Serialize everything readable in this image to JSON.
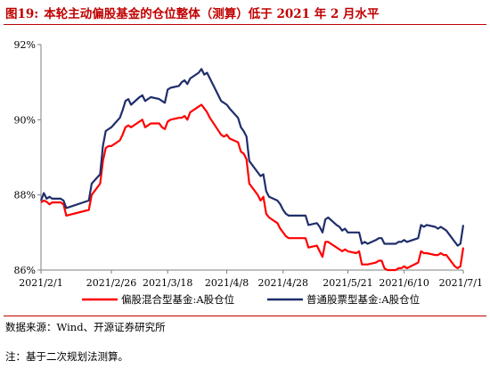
{
  "title": {
    "label": "图19:",
    "text": "本轮主动偏股基金的仓位整体（测算）低于 2021 年 2 月水平"
  },
  "source": "数据来源：Wind、开源证券研究所",
  "note": "注：基于二次规划法测算。",
  "colors": {
    "title": "#c00000",
    "series_red": "#ff0000",
    "series_navy": "#1f2e6b",
    "axis": "#7f7f7f"
  },
  "chart_data": {
    "type": "line",
    "title": "",
    "xlabel": "",
    "ylabel": "",
    "ylim": [
      86,
      92
    ],
    "xlim": [
      "2021-02-01",
      "2021-07-01"
    ],
    "yticks": [
      86,
      88,
      90,
      92
    ],
    "ytick_labels": [
      "86%",
      "88%",
      "90%",
      "92%"
    ],
    "xticks": [
      "2021-02-01",
      "2021-02-26",
      "2021-03-18",
      "2021-04-08",
      "2021-04-28",
      "2021-05-21",
      "2021-06-10",
      "2021-07-01"
    ],
    "xtick_labels": [
      "2021/2/1",
      "2021/2/26",
      "2021/3/18",
      "2021/4/8",
      "2021/4/28",
      "2021/5/21",
      "2021/6/10",
      "2021/7/1"
    ],
    "grid": false,
    "legend": "bottom",
    "series": [
      {
        "name": "偏股混合型基金:A股仓位",
        "color": "#ff0000",
        "points": [
          [
            "2021-02-01",
            87.8
          ],
          [
            "2021-02-02",
            87.85
          ],
          [
            "2021-02-03",
            87.82
          ],
          [
            "2021-02-04",
            87.75
          ],
          [
            "2021-02-05",
            87.8
          ],
          [
            "2021-02-08",
            87.8
          ],
          [
            "2021-02-09",
            87.75
          ],
          [
            "2021-02-10",
            87.45
          ],
          [
            "2021-02-18",
            87.6
          ],
          [
            "2021-02-19",
            88.0
          ],
          [
            "2021-02-22",
            88.3
          ],
          [
            "2021-02-23",
            88.9
          ],
          [
            "2021-02-24",
            89.25
          ],
          [
            "2021-02-25",
            89.3
          ],
          [
            "2021-02-26",
            89.3
          ],
          [
            "2021-03-01",
            89.45
          ],
          [
            "2021-03-02",
            89.6
          ],
          [
            "2021-03-03",
            89.8
          ],
          [
            "2021-03-04",
            89.85
          ],
          [
            "2021-03-05",
            89.8
          ],
          [
            "2021-03-08",
            89.95
          ],
          [
            "2021-03-09",
            90.0
          ],
          [
            "2021-03-10",
            89.8
          ],
          [
            "2021-03-11",
            89.85
          ],
          [
            "2021-03-12",
            89.9
          ],
          [
            "2021-03-15",
            89.9
          ],
          [
            "2021-03-16",
            89.8
          ],
          [
            "2021-03-17",
            89.75
          ],
          [
            "2021-03-18",
            89.95
          ],
          [
            "2021-03-19",
            90.0
          ],
          [
            "2021-03-22",
            90.05
          ],
          [
            "2021-03-23",
            90.05
          ],
          [
            "2021-03-24",
            90.1
          ],
          [
            "2021-03-25",
            90.0
          ],
          [
            "2021-03-26",
            90.2
          ],
          [
            "2021-03-29",
            90.35
          ],
          [
            "2021-03-30",
            90.4
          ],
          [
            "2021-03-31",
            90.3
          ],
          [
            "2021-04-01",
            90.2
          ],
          [
            "2021-04-02",
            90.05
          ],
          [
            "2021-04-06",
            89.6
          ],
          [
            "2021-04-07",
            89.55
          ],
          [
            "2021-04-08",
            89.6
          ],
          [
            "2021-04-09",
            89.5
          ],
          [
            "2021-04-12",
            89.4
          ],
          [
            "2021-04-13",
            89.15
          ],
          [
            "2021-04-14",
            89.1
          ],
          [
            "2021-04-15",
            88.95
          ],
          [
            "2021-04-16",
            88.3
          ],
          [
            "2021-04-19",
            88.0
          ],
          [
            "2021-04-20",
            87.85
          ],
          [
            "2021-04-21",
            87.95
          ],
          [
            "2021-04-22",
            87.5
          ],
          [
            "2021-04-23",
            87.4
          ],
          [
            "2021-04-26",
            87.25
          ],
          [
            "2021-04-27",
            87.1
          ],
          [
            "2021-04-28",
            87.0
          ],
          [
            "2021-04-29",
            86.9
          ],
          [
            "2021-04-30",
            86.85
          ],
          [
            "2021-05-06",
            86.85
          ],
          [
            "2021-05-07",
            86.6
          ],
          [
            "2021-05-10",
            86.65
          ],
          [
            "2021-05-11",
            86.5
          ],
          [
            "2021-05-12",
            86.35
          ],
          [
            "2021-05-13",
            86.75
          ],
          [
            "2021-05-14",
            86.75
          ],
          [
            "2021-05-17",
            86.6
          ],
          [
            "2021-05-18",
            86.55
          ],
          [
            "2021-05-19",
            86.5
          ],
          [
            "2021-05-20",
            86.55
          ],
          [
            "2021-05-21",
            86.5
          ],
          [
            "2021-05-24",
            86.45
          ],
          [
            "2021-05-25",
            86.5
          ],
          [
            "2021-05-26",
            86.15
          ],
          [
            "2021-05-27",
            86.15
          ],
          [
            "2021-05-28",
            86.15
          ],
          [
            "2021-05-31",
            86.2
          ],
          [
            "2021-06-01",
            86.25
          ],
          [
            "2021-06-02",
            86.25
          ],
          [
            "2021-06-03",
            86.05
          ],
          [
            "2021-06-04",
            86.0
          ],
          [
            "2021-06-07",
            86.0
          ],
          [
            "2021-06-08",
            86.05
          ],
          [
            "2021-06-09",
            86.05
          ],
          [
            "2021-06-10",
            86.1
          ],
          [
            "2021-06-11",
            86.05
          ],
          [
            "2021-06-15",
            86.2
          ],
          [
            "2021-06-16",
            86.5
          ],
          [
            "2021-06-17",
            86.45
          ],
          [
            "2021-06-18",
            86.45
          ],
          [
            "2021-06-21",
            86.4
          ],
          [
            "2021-06-22",
            86.4
          ],
          [
            "2021-06-23",
            86.45
          ],
          [
            "2021-06-24",
            86.4
          ],
          [
            "2021-06-25",
            86.4
          ],
          [
            "2021-06-28",
            86.1
          ],
          [
            "2021-06-29",
            86.05
          ],
          [
            "2021-06-30",
            86.1
          ],
          [
            "2021-07-01",
            86.6
          ]
        ]
      },
      {
        "name": "普通股票型基金:A股仓位",
        "color": "#1f2e6b",
        "points": [
          [
            "2021-02-01",
            87.85
          ],
          [
            "2021-02-02",
            88.05
          ],
          [
            "2021-02-03",
            87.9
          ],
          [
            "2021-02-04",
            87.95
          ],
          [
            "2021-02-05",
            87.9
          ],
          [
            "2021-02-08",
            87.9
          ],
          [
            "2021-02-09",
            87.85
          ],
          [
            "2021-02-10",
            87.65
          ],
          [
            "2021-02-18",
            87.85
          ],
          [
            "2021-02-19",
            88.3
          ],
          [
            "2021-02-22",
            88.55
          ],
          [
            "2021-02-23",
            89.3
          ],
          [
            "2021-02-24",
            89.7
          ],
          [
            "2021-02-25",
            89.75
          ],
          [
            "2021-02-26",
            89.8
          ],
          [
            "2021-03-01",
            90.05
          ],
          [
            "2021-03-02",
            90.25
          ],
          [
            "2021-03-03",
            90.5
          ],
          [
            "2021-03-04",
            90.55
          ],
          [
            "2021-03-05",
            90.4
          ],
          [
            "2021-03-08",
            90.6
          ],
          [
            "2021-03-09",
            90.65
          ],
          [
            "2021-03-10",
            90.5
          ],
          [
            "2021-03-11",
            90.55
          ],
          [
            "2021-03-12",
            90.6
          ],
          [
            "2021-03-15",
            90.55
          ],
          [
            "2021-03-16",
            90.5
          ],
          [
            "2021-03-17",
            90.45
          ],
          [
            "2021-03-18",
            90.8
          ],
          [
            "2021-03-19",
            90.85
          ],
          [
            "2021-03-22",
            90.9
          ],
          [
            "2021-03-23",
            91.0
          ],
          [
            "2021-03-24",
            91.05
          ],
          [
            "2021-03-25",
            90.95
          ],
          [
            "2021-03-26",
            91.1
          ],
          [
            "2021-03-29",
            91.25
          ],
          [
            "2021-03-30",
            91.35
          ],
          [
            "2021-03-31",
            91.2
          ],
          [
            "2021-04-01",
            91.25
          ],
          [
            "2021-04-02",
            91.1
          ],
          [
            "2021-04-06",
            90.5
          ],
          [
            "2021-04-07",
            90.45
          ],
          [
            "2021-04-08",
            90.4
          ],
          [
            "2021-04-09",
            90.3
          ],
          [
            "2021-04-12",
            90.05
          ],
          [
            "2021-04-13",
            89.8
          ],
          [
            "2021-04-14",
            89.7
          ],
          [
            "2021-04-15",
            89.55
          ],
          [
            "2021-04-16",
            88.9
          ],
          [
            "2021-04-19",
            88.6
          ],
          [
            "2021-04-20",
            88.5
          ],
          [
            "2021-04-21",
            88.55
          ],
          [
            "2021-04-22",
            88.1
          ],
          [
            "2021-04-23",
            87.95
          ],
          [
            "2021-04-26",
            87.85
          ],
          [
            "2021-04-27",
            87.75
          ],
          [
            "2021-04-28",
            87.6
          ],
          [
            "2021-04-29",
            87.5
          ],
          [
            "2021-04-30",
            87.45
          ],
          [
            "2021-05-06",
            87.45
          ],
          [
            "2021-05-07",
            87.2
          ],
          [
            "2021-05-10",
            87.25
          ],
          [
            "2021-05-11",
            87.15
          ],
          [
            "2021-05-12",
            87.0
          ],
          [
            "2021-05-13",
            87.35
          ],
          [
            "2021-05-14",
            87.4
          ],
          [
            "2021-05-17",
            87.2
          ],
          [
            "2021-05-18",
            87.15
          ],
          [
            "2021-05-19",
            87.05
          ],
          [
            "2021-05-20",
            87.1
          ],
          [
            "2021-05-21",
            87.0
          ],
          [
            "2021-05-24",
            87.0
          ],
          [
            "2021-05-25",
            87.0
          ],
          [
            "2021-05-26",
            86.7
          ],
          [
            "2021-05-27",
            86.75
          ],
          [
            "2021-05-28",
            86.7
          ],
          [
            "2021-05-31",
            86.8
          ],
          [
            "2021-06-01",
            86.85
          ],
          [
            "2021-06-02",
            86.85
          ],
          [
            "2021-06-03",
            86.7
          ],
          [
            "2021-06-04",
            86.7
          ],
          [
            "2021-06-07",
            86.7
          ],
          [
            "2021-06-08",
            86.75
          ],
          [
            "2021-06-09",
            86.75
          ],
          [
            "2021-06-10",
            86.8
          ],
          [
            "2021-06-11",
            86.75
          ],
          [
            "2021-06-15",
            86.85
          ],
          [
            "2021-06-16",
            87.2
          ],
          [
            "2021-06-17",
            87.15
          ],
          [
            "2021-06-18",
            87.2
          ],
          [
            "2021-06-21",
            87.15
          ],
          [
            "2021-06-22",
            87.1
          ],
          [
            "2021-06-23",
            87.15
          ],
          [
            "2021-06-24",
            87.1
          ],
          [
            "2021-06-25",
            87.05
          ],
          [
            "2021-06-28",
            86.75
          ],
          [
            "2021-06-29",
            86.65
          ],
          [
            "2021-06-30",
            86.7
          ],
          [
            "2021-07-01",
            87.2
          ]
        ]
      }
    ]
  }
}
